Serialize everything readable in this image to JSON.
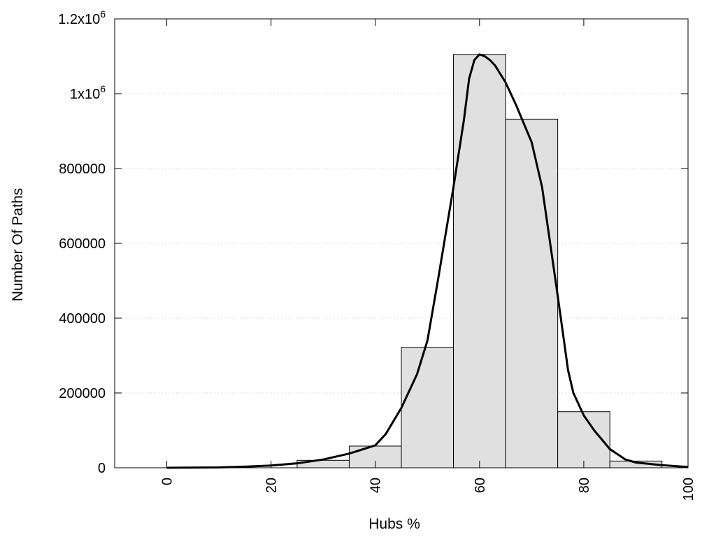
{
  "chart_data": {
    "type": "bar",
    "xlabel": "Hubs %",
    "ylabel": "Number Of Paths",
    "xlim": [
      -10,
      100
    ],
    "ylim": [
      0,
      1200000
    ],
    "grid": true,
    "x_ticks": [
      {
        "value": 0,
        "label": "0"
      },
      {
        "value": 20,
        "label": "20"
      },
      {
        "value": 40,
        "label": "40"
      },
      {
        "value": 60,
        "label": "60"
      },
      {
        "value": 80,
        "label": "80"
      },
      {
        "value": 100,
        "label": "100"
      }
    ],
    "y_ticks": [
      {
        "value": 0,
        "label": "0"
      },
      {
        "value": 200000,
        "label": "200000"
      },
      {
        "value": 400000,
        "label": "400000"
      },
      {
        "value": 600000,
        "label": "600000"
      },
      {
        "value": 800000,
        "label": "800000"
      },
      {
        "value": 1000000,
        "label": "1x10",
        "sup": "6"
      },
      {
        "value": 1200000,
        "label": "1.2x10",
        "sup": "6"
      }
    ],
    "bar_width": 10,
    "bars": [
      {
        "x": 0,
        "value": 0
      },
      {
        "x": 10,
        "value": 0
      },
      {
        "x": 20,
        "value": 0
      },
      {
        "x": 30,
        "value": 20000
      },
      {
        "x": 40,
        "value": 58000
      },
      {
        "x": 50,
        "value": 322000
      },
      {
        "x": 60,
        "value": 1105000
      },
      {
        "x": 70,
        "value": 932000
      },
      {
        "x": 80,
        "value": 150000
      },
      {
        "x": 90,
        "value": 18000
      }
    ],
    "curve": {
      "x": [
        0,
        5,
        10,
        15,
        20,
        25,
        30,
        35,
        40,
        42,
        45,
        48,
        50,
        52,
        55,
        57,
        58,
        59,
        60,
        61,
        62,
        63,
        65,
        67,
        70,
        72,
        75,
        77,
        78,
        80,
        82,
        85,
        88,
        90,
        95,
        100
      ],
      "y": [
        0,
        500,
        1000,
        3000,
        6000,
        12000,
        22000,
        38000,
        60000,
        90000,
        160000,
        250000,
        340000,
        500000,
        750000,
        930000,
        1040000,
        1090000,
        1105000,
        1100000,
        1090000,
        1075000,
        1030000,
        970000,
        870000,
        750000,
        460000,
        260000,
        200000,
        140000,
        100000,
        50000,
        22000,
        14000,
        7000,
        2000
      ]
    },
    "colors": {
      "bar_fill": "#e0e0e0",
      "bar_stroke": "#000000",
      "curve": "#000000",
      "grid": "#cccccc"
    }
  }
}
